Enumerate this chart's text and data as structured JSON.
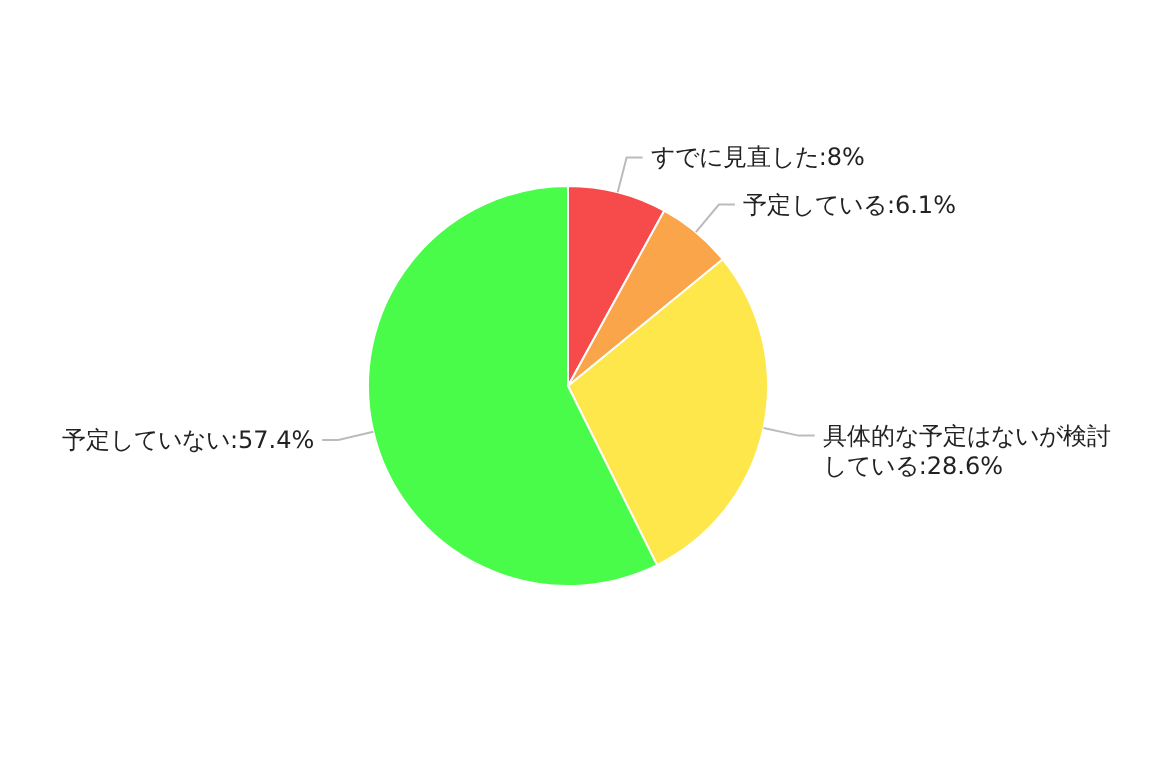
{
  "chart_data": {
    "type": "pie",
    "categories": [
      "すでに見直した",
      "予定している",
      "具体的な予定はないが検討している",
      "予定していない"
    ],
    "values": [
      8,
      6.1,
      28.6,
      57.4
    ],
    "value_labels": [
      "8%",
      "6.1%",
      "28.6%",
      "57.4%"
    ],
    "colors": [
      "#f74a4a",
      "#fba54a",
      "#fde74a",
      "#4afc4a"
    ],
    "legend": false
  }
}
